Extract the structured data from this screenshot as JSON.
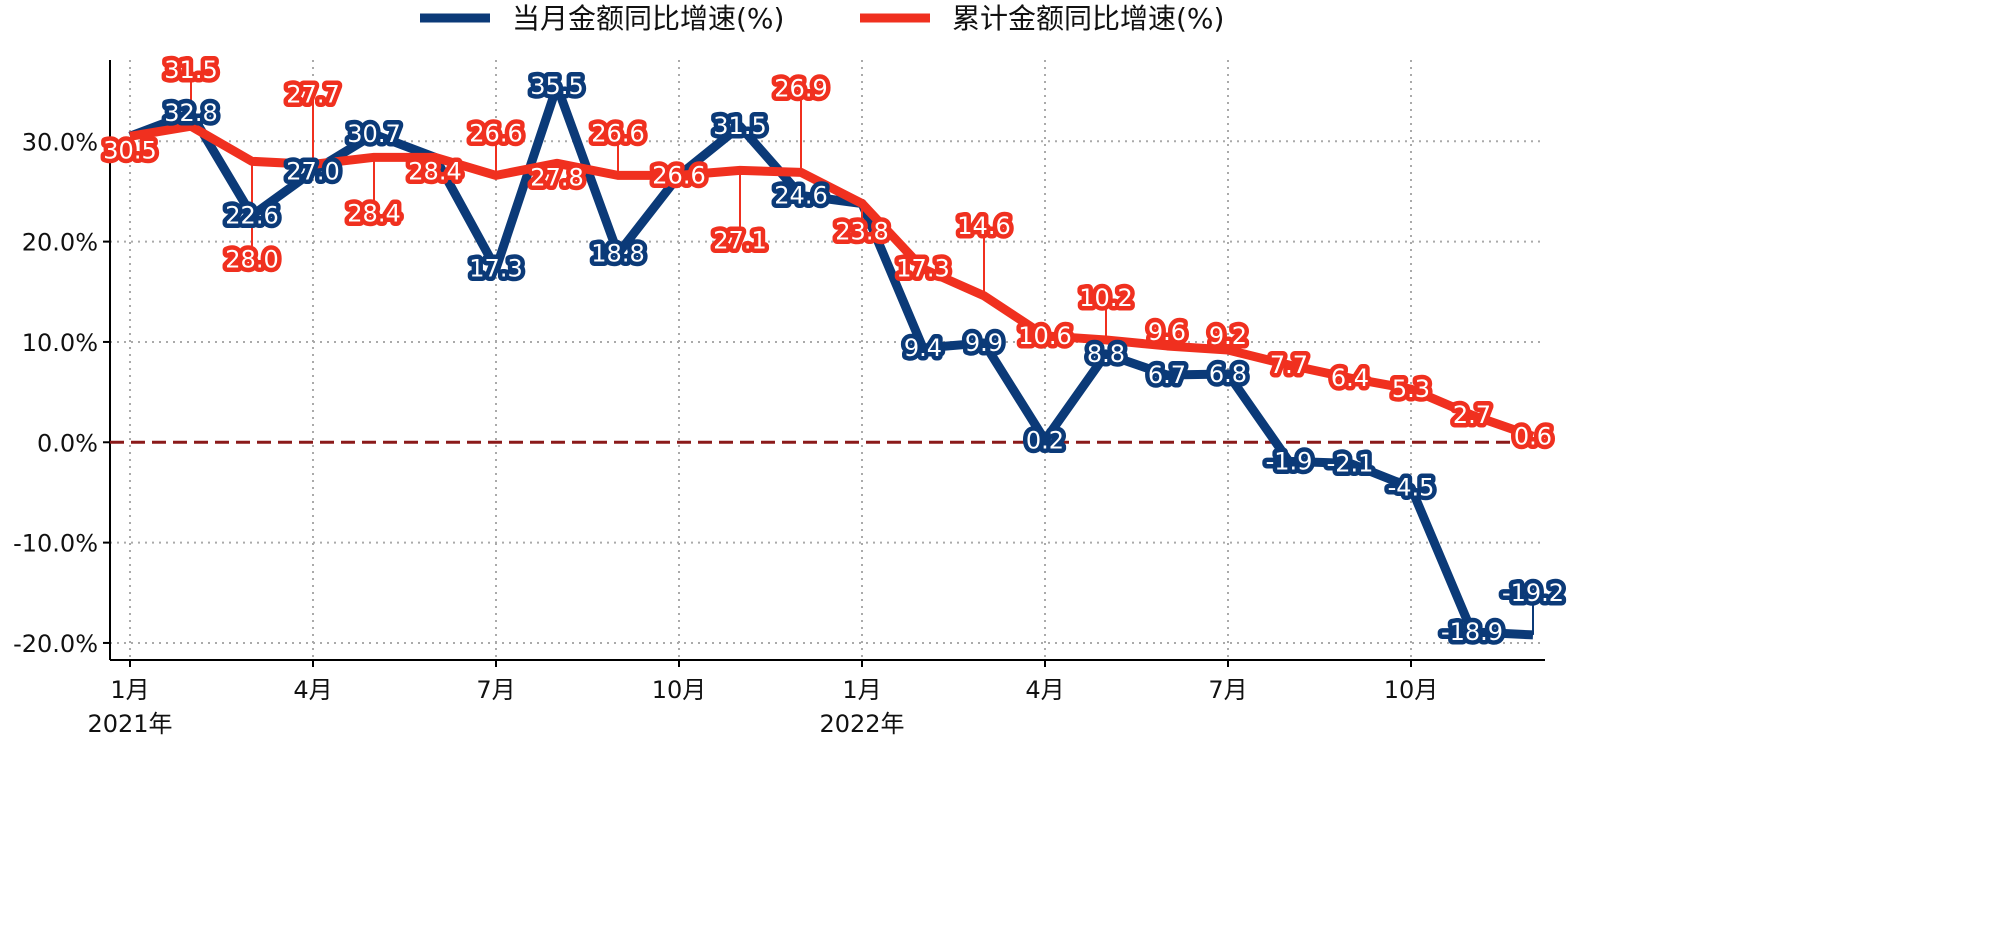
{
  "chart_data": {
    "type": "line",
    "categories": [
      "2021-01",
      "2021-02",
      "2021-03",
      "2021-04",
      "2021-05",
      "2021-06",
      "2021-07",
      "2021-08",
      "2021-09",
      "2021-10",
      "2021-11",
      "2021-12",
      "2022-01",
      "2022-02",
      "2022-03",
      "2022-04",
      "2022-05",
      "2022-06",
      "2022-07",
      "2022-08",
      "2022-09",
      "2022-10",
      "2022-11",
      "2022-12"
    ],
    "series": [
      {
        "name": "当月金额同比增速(%)",
        "color": "#0b3a78",
        "values": [
          30.5,
          32.8,
          22.6,
          27.0,
          30.7,
          28.4,
          17.3,
          35.5,
          18.8,
          26.6,
          31.5,
          24.6,
          23.8,
          9.4,
          9.9,
          0.2,
          8.8,
          6.7,
          6.8,
          -1.9,
          -2.1,
          -4.5,
          -18.9,
          -19.2
        ]
      },
      {
        "name": "累计金额同比增速(%)",
        "color": "#f0301f",
        "values": [
          30.5,
          31.5,
          28.0,
          27.7,
          28.4,
          28.4,
          26.6,
          27.8,
          26.6,
          26.6,
          27.1,
          26.9,
          23.8,
          17.3,
          14.6,
          10.6,
          10.2,
          9.6,
          9.2,
          7.7,
          6.4,
          5.3,
          2.7,
          0.6
        ]
      }
    ],
    "hidden_labels": [
      0,
      5,
      9,
      12
    ],
    "xticks": [
      {
        "index": 0,
        "label": "1月",
        "sub": "2021年"
      },
      {
        "index": 3,
        "label": "4月"
      },
      {
        "index": 6,
        "label": "7月"
      },
      {
        "index": 9,
        "label": "10月"
      },
      {
        "index": 12,
        "label": "1月",
        "sub": "2022年"
      },
      {
        "index": 15,
        "label": "4月"
      },
      {
        "index": 18,
        "label": "7月"
      },
      {
        "index": 21,
        "label": "10月"
      }
    ],
    "yticks": [
      {
        "value": 30,
        "label": "30.0%"
      },
      {
        "value": 20,
        "label": "20.0%"
      },
      {
        "value": 10,
        "label": "10.0%"
      },
      {
        "value": 0,
        "label": "0.0%"
      },
      {
        "value": -10,
        "label": "-10.0%"
      },
      {
        "value": -20,
        "label": "-20.0%"
      }
    ],
    "ylim": [
      -21.7,
      38.1
    ],
    "reference_line": {
      "value": 0,
      "color": "#8b1a1a",
      "style": "dashed"
    },
    "grid": true,
    "legend": "top-center"
  }
}
